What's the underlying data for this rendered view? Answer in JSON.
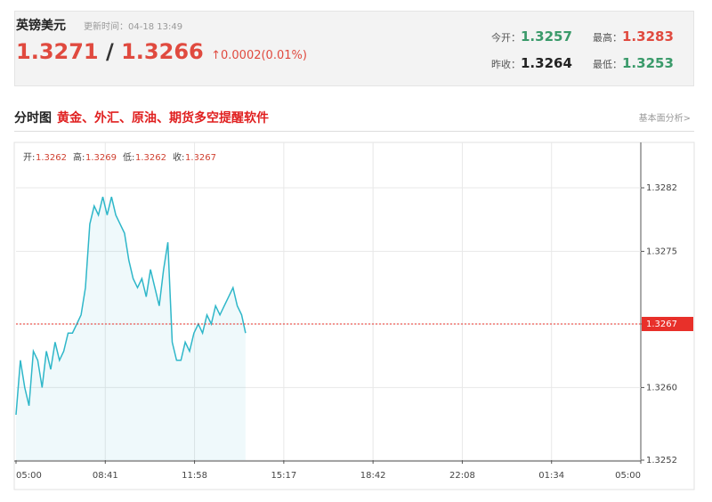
{
  "header": {
    "title": "英镑美元",
    "update_time": "更新时间：04-18 13:49",
    "price": "1.3271",
    "separator": "/",
    "price2": "1.3266",
    "change": "0.0002(0.01%)",
    "stats": [
      {
        "label": "今开：",
        "value": "1.3257"
      },
      {
        "label": "最高：",
        "value": "1.3283"
      },
      {
        "label": "昨收：",
        "value": "1.3264"
      },
      {
        "label": "最低：",
        "value": "1.3253"
      }
    ]
  },
  "section": {
    "title": "分时图",
    "promo": "黄金、外汇、原油、期货多空提醒软件",
    "link": "基本面分析>"
  },
  "chart_data": {
    "type": "line",
    "info": [
      {
        "label": "开:",
        "value": "1.3262"
      },
      {
        "label": "高:",
        "value": "1.3269"
      },
      {
        "label": "低:",
        "value": "1.3262"
      },
      {
        "label": "收:",
        "value": "1.3267"
      }
    ],
    "xticks": [
      "05:00",
      "08:41",
      "11:58",
      "15:17",
      "18:42",
      "22:08",
      "01:34",
      "05:00"
    ],
    "x": [
      "05:00",
      "05:10",
      "05:20",
      "05:30",
      "05:40",
      "05:50",
      "06:00",
      "06:10",
      "06:20",
      "06:30",
      "06:40",
      "06:50",
      "07:00",
      "07:10",
      "07:20",
      "07:30",
      "07:40",
      "07:50",
      "08:00",
      "08:10",
      "08:20",
      "08:30",
      "08:40",
      "08:50",
      "09:00",
      "09:10",
      "09:20",
      "09:30",
      "09:40",
      "09:50",
      "10:00",
      "10:10",
      "10:20",
      "10:30",
      "10:40",
      "10:50",
      "11:00",
      "11:10",
      "11:20",
      "11:30",
      "11:40",
      "11:50",
      "12:00",
      "12:10",
      "12:20",
      "12:30",
      "12:40",
      "12:50",
      "13:00",
      "13:10",
      "13:20",
      "13:30",
      "13:40",
      "13:49"
    ],
    "series": [
      {
        "color": "#2fb7c9",
        "values": [
          1.3257,
          1.3263,
          1.326,
          1.3258,
          1.3264,
          1.3263,
          1.326,
          1.3264,
          1.3262,
          1.3265,
          1.3263,
          1.3264,
          1.3266,
          1.3266,
          1.3267,
          1.3268,
          1.3271,
          1.3278,
          1.328,
          1.3279,
          1.3281,
          1.3279,
          1.3281,
          1.3279,
          1.3278,
          1.3277,
          1.3274,
          1.3272,
          1.3271,
          1.3272,
          1.327,
          1.3273,
          1.3271,
          1.3269,
          1.3273,
          1.3276,
          1.3265,
          1.3263,
          1.3263,
          1.3265,
          1.3264,
          1.3266,
          1.3267,
          1.3266,
          1.3268,
          1.3267,
          1.3269,
          1.3268,
          1.3269,
          1.327,
          1.3271,
          1.3269,
          1.3268,
          1.3266
        ]
      }
    ],
    "ylim": [
      1.3252,
      1.3287
    ],
    "yticks": [
      1.3252,
      {
        "value": 1.326,
        "label": "1.3260"
      },
      1.3267,
      1.3275,
      1.3282
    ],
    "reference_line": 1.3267,
    "reference_color": "#e8302a",
    "grid": true
  }
}
